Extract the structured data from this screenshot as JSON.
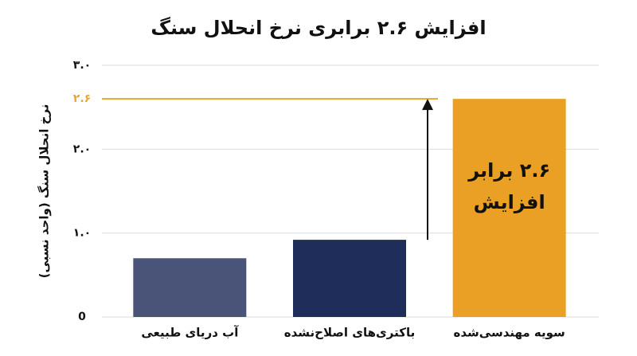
{
  "chart_data": {
    "type": "bar",
    "title": "افزایش ۲.۶ برابری نرخ انحلال سنگ",
    "y_label": "نرخ انحلال سنگ (واحد نسبی)",
    "categories": [
      "آب دریای طبیعی",
      "باکتری‌های اصلاح‌نشده",
      "سویه مهندسی‌شده"
    ],
    "values": [
      0.7,
      0.92,
      2.6
    ],
    "colors": [
      "#4a5478",
      "#1f2d5a",
      "#eaa025"
    ],
    "ylim": [
      0,
      3.0
    ],
    "yticks": [
      0,
      {
        "value": 1.0,
        "label": "۱.۰"
      },
      {
        "value": 2.0,
        "label": "۲.۰"
      },
      {
        "value": 2.6,
        "label": "۲.۶"
      },
      {
        "value": 3.0,
        "label": "۳.۰"
      }
    ],
    "grid": true,
    "reference_line": {
      "value": 2.6,
      "color": "#e6a730"
    },
    "annotation": [
      "۲.۶ برابر",
      "افزایش"
    ]
  }
}
